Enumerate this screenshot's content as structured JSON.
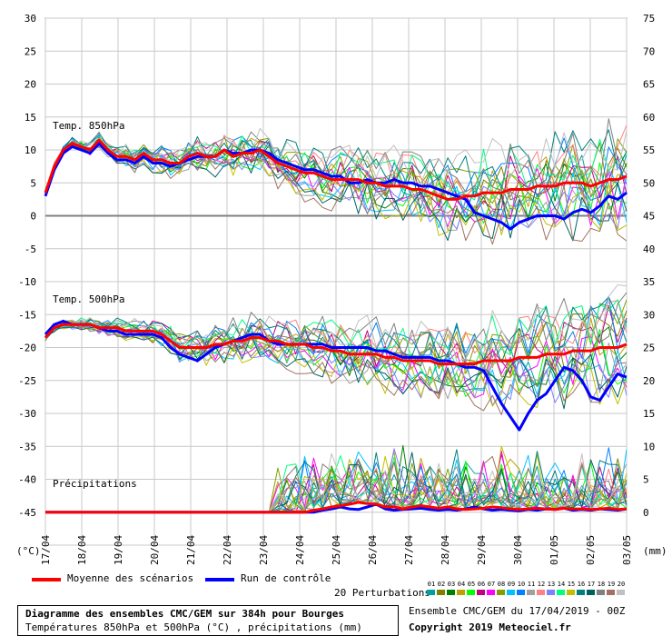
{
  "chart_data": {
    "type": "line",
    "title": "Diagramme des ensembles CMC/GEM sur 384h pour Bourges",
    "subtitle": "Températures 850hPa et 500hPa (°C) , précipitations (mm)",
    "left_axis": {
      "label": "(°C)",
      "ylim": [
        -50,
        30
      ],
      "ticks": [
        30,
        25,
        20,
        15,
        10,
        5,
        0,
        -5,
        -10,
        -15,
        -20,
        -25,
        -30,
        -35,
        -40,
        -45
      ]
    },
    "right_axis": {
      "label": "(mm)",
      "ylim": [
        -5,
        75
      ],
      "ticks": [
        75,
        70,
        65,
        60,
        55,
        50,
        45,
        40,
        35,
        30,
        25,
        20,
        15,
        10,
        5,
        0
      ]
    },
    "x_labels": [
      "17/04",
      "18/04",
      "19/04",
      "20/04",
      "21/04",
      "22/04",
      "23/04",
      "24/04",
      "25/04",
      "26/04",
      "27/04",
      "28/04",
      "29/04",
      "30/04",
      "01/05",
      "02/05",
      "03/05"
    ],
    "sections": [
      "Temp. 850hPa",
      "Temp. 500hPa",
      "Précipitations"
    ],
    "grid": true,
    "series": [
      {
        "name": "Moyenne des scénarios",
        "color": "#ff0000",
        "t850": [
          3.5,
          7.5,
          10,
          11,
          10.5,
          10,
          11.5,
          10,
          9,
          9,
          8.5,
          9.5,
          8.5,
          8.5,
          8,
          8,
          9,
          9.5,
          9,
          9,
          10,
          9,
          9.5,
          9.5,
          10,
          9,
          8,
          7.5,
          7,
          6.5,
          6.5,
          6,
          5.5,
          5.5,
          5.5,
          5.5,
          5,
          5,
          4.5,
          4.5,
          4.5,
          4,
          4,
          3.5,
          3,
          2.5,
          2.5,
          3,
          3,
          3.5,
          3.5,
          3.5,
          4,
          4,
          4,
          4.5,
          4.5,
          4.5,
          5,
          5,
          5,
          4.5,
          5,
          5.5,
          5.5,
          6
        ],
        "t500": [
          -18.5,
          -17,
          -16.5,
          -16.5,
          -16.5,
          -16.5,
          -17,
          -17,
          -17,
          -17.5,
          -17.5,
          -17.5,
          -17.5,
          -18,
          -19,
          -20,
          -20,
          -20,
          -20,
          -19.5,
          -19.5,
          -19,
          -19,
          -18.5,
          -18.5,
          -19,
          -19,
          -19.5,
          -19.5,
          -19.5,
          -20,
          -20,
          -20.5,
          -20.5,
          -21,
          -21,
          -21,
          -21,
          -21.5,
          -21.5,
          -22,
          -22,
          -22,
          -22,
          -22.5,
          -22.5,
          -22.5,
          -22.5,
          -22.5,
          -22,
          -22,
          -22,
          -22,
          -21.5,
          -21.5,
          -21.5,
          -21,
          -21,
          -21,
          -20.5,
          -20.5,
          -20.5,
          -20,
          -20,
          -20,
          -19.5
        ],
        "precip": [
          0,
          0,
          0,
          0,
          0,
          0,
          0,
          0,
          0,
          0,
          0,
          0,
          0,
          0,
          0,
          0,
          0,
          0,
          0,
          0,
          0,
          0,
          0,
          0,
          0,
          0,
          0,
          0,
          0,
          0,
          0.3,
          0.5,
          0.8,
          1,
          1.2,
          1.5,
          1.3,
          1.2,
          0.8,
          0.8,
          0.5,
          0.8,
          1,
          0.8,
          0.6,
          0.8,
          0.5,
          0.4,
          0.5,
          0.6,
          0.8,
          0.7,
          0.5,
          0.4,
          0.5,
          0.6,
          0.5,
          0.4,
          0.6,
          0.5,
          0.5,
          0.4,
          0.5,
          0.6,
          0.4,
          0.5
        ]
      },
      {
        "name": "Run de contrôle",
        "color": "#0000ff",
        "t850": [
          3,
          7,
          9.5,
          10.5,
          10,
          9.5,
          11,
          9.5,
          8.5,
          8.5,
          8,
          9,
          8,
          8,
          7.5,
          8,
          8.5,
          9,
          9,
          9,
          10,
          9.5,
          9.5,
          10,
          10,
          9.5,
          8.5,
          8,
          7.5,
          7,
          7,
          6.5,
          6,
          6,
          5,
          5,
          5.5,
          5,
          5,
          5.5,
          5,
          5,
          4.5,
          4.5,
          4,
          3.5,
          3,
          2.5,
          0.5,
          0,
          -0.5,
          -1,
          -2,
          -1,
          -0.5,
          0,
          0,
          0,
          -0.5,
          0.5,
          1,
          0.5,
          1.5,
          3,
          2.5,
          3.5
        ],
        "t500": [
          -18,
          -16.5,
          -16,
          -16.5,
          -16.5,
          -16.5,
          -17,
          -17.5,
          -17.5,
          -18,
          -18,
          -18,
          -18,
          -18.5,
          -20,
          -21,
          -21.5,
          -22,
          -21,
          -20,
          -19.5,
          -19,
          -18.5,
          -18,
          -18,
          -19,
          -19.5,
          -19.5,
          -19.5,
          -19.5,
          -19.5,
          -19.5,
          -20,
          -20,
          -20,
          -20,
          -20,
          -20.5,
          -20.5,
          -21,
          -21.5,
          -21.5,
          -21.5,
          -21.5,
          -22,
          -22,
          -22.5,
          -23,
          -23,
          -23.5,
          -26,
          -28.5,
          -30.5,
          -32.5,
          -30,
          -28,
          -27,
          -25,
          -23,
          -23.5,
          -25,
          -27.5,
          -28,
          -26,
          -24,
          -24.5
        ],
        "precip": [
          0,
          0,
          0,
          0,
          0,
          0,
          0,
          0,
          0,
          0,
          0,
          0,
          0,
          0,
          0,
          0,
          0,
          0,
          0,
          0,
          0,
          0,
          0,
          0,
          0,
          0,
          0,
          0,
          0,
          0,
          0,
          0.3,
          0.5,
          0.8,
          0.5,
          0.4,
          0.8,
          1.2,
          0.5,
          0.3,
          0.4,
          0.5,
          0.6,
          0.4,
          0.3,
          0.4,
          0.3,
          0.5,
          0.8,
          0.5,
          0.3,
          0.4,
          0.3,
          0.2,
          0.4,
          0.3,
          0.5,
          0.4,
          0.6,
          0.3,
          0.4,
          0.3,
          0.5,
          0.4,
          0.3,
          0.5
        ]
      }
    ],
    "perturbations_label": "20 Perturbations",
    "perturbation_numbers": [
      "01",
      "02",
      "03",
      "04",
      "05",
      "06",
      "07",
      "08",
      "09",
      "10",
      "11",
      "12",
      "13",
      "14",
      "15",
      "16",
      "17",
      "18",
      "19",
      "20"
    ],
    "perturbation_colors": [
      "#00a0a0",
      "#808000",
      "#008000",
      "#c0a000",
      "#00ff00",
      "#c00080",
      "#ff00ff",
      "#80a000",
      "#00c0ff",
      "#0080ff",
      "#a0a0a0",
      "#ff8080",
      "#8080ff",
      "#00ff80",
      "#c0c000",
      "#008080",
      "#006060",
      "#808080",
      "#a07060",
      "#c0c0c0"
    ]
  },
  "legend": {
    "mean_label": "Moyenne des scénarios",
    "control_label": "Run de contrôle"
  },
  "footer": {
    "title": "Diagramme des ensembles CMC/GEM sur 384h pour Bourges",
    "subtitle": "Températures 850hPa et 500hPa (°C) , précipitations (mm)",
    "run_info": "Ensemble CMC/GEM du 17/04/2019 - 00Z",
    "copyright": "Copyright 2019 Meteociel.fr"
  }
}
